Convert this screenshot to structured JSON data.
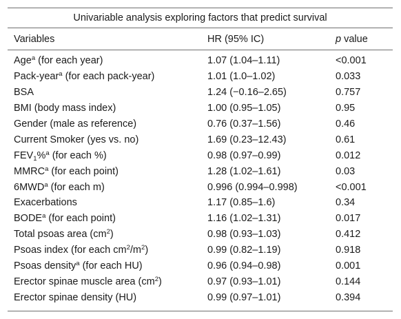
{
  "title": "Univariable analysis exploring factors that predict survival",
  "headers": {
    "variables": "Variables",
    "hr": "HR (95% IC)",
    "p_italic": "p",
    "p_rest": " value"
  },
  "rows": [
    {
      "pre": "Age",
      "sup1": "a",
      "mid": " (for each year)",
      "hr": "1.07 (1.04–1.11)",
      "p": "<0.001"
    },
    {
      "pre": "Pack-year",
      "sup1": "a",
      "mid": " (for each pack-year)",
      "hr": "1.01 (1.0–1.02)",
      "p": "0.033"
    },
    {
      "pre": "BSA",
      "hr": "1.24 (−0.16–2.65)",
      "p": "0.757"
    },
    {
      "pre": "BMI (body mass index)",
      "hr": "1.00 (0.95–1.05)",
      "p": "0.95"
    },
    {
      "pre": "Gender (male as reference)",
      "hr": "0.76 (0.37–1.56)",
      "p": "0.46"
    },
    {
      "pre": "Current Smoker (yes vs. no)",
      "hr": "1.69 (0.23–12.43)",
      "p": "0.61"
    },
    {
      "pre": "FEV",
      "sub1": "1",
      "mid": "%",
      "sup1": "a",
      "post": " (for each %)",
      "hr": "0.98 (0.97–0.99)",
      "p": "0.012"
    },
    {
      "pre": "MMRC",
      "sup1": "a",
      "mid": " (for each point)",
      "hr": "1.28 (1.02–1.61)",
      "p": "0.03"
    },
    {
      "pre": "6MWD",
      "sup1": "a",
      "mid": " (for each m)",
      "hr": "0.996 (0.994–0.998)",
      "p": "<0.001"
    },
    {
      "pre": "Exacerbations",
      "hr": "1.17 (0.85–1.6)",
      "p": "0.34"
    },
    {
      "pre": "BODE",
      "sup1": "a",
      "mid": " (for each point)",
      "hr": "1.16 (1.02–1.31)",
      "p": "0.017"
    },
    {
      "pre": "Total psoas area (cm",
      "sup1": "2",
      "mid": ")",
      "hr": "0.98 (0.93–1.03)",
      "p": "0.412"
    },
    {
      "pre": "Psoas index (for each cm",
      "sup1": "2",
      "mid": "/m",
      "sup2": "2",
      "post": ")",
      "hr": "0.99 (0.82–1.19)",
      "p": "0.918"
    },
    {
      "pre": "Psoas density",
      "sup1": "a",
      "mid": " (for each HU)",
      "hr": "0.96 (0.94–0.98)",
      "p": "0.001"
    },
    {
      "pre": "Erector spinae muscle area (cm",
      "sup1": "2",
      "mid": ")",
      "hr": "0.97 (0.93–1.01)",
      "p": "0.144"
    },
    {
      "pre": "Erector spinae density (HU)",
      "hr": "0.99 (0.97–1.01)",
      "p": "0.394"
    }
  ]
}
